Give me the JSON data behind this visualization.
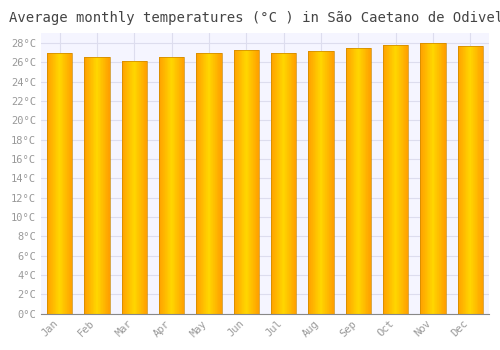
{
  "title": "Average monthly temperatures (°C ) in SãLo Caetano de Odivelas",
  "title_display": "Average monthly temperatures (°C ) in São Caetano de Odivelas",
  "months": [
    "Jan",
    "Feb",
    "Mar",
    "Apr",
    "May",
    "Jun",
    "Jul",
    "Aug",
    "Sep",
    "Oct",
    "Nov",
    "Dec"
  ],
  "values": [
    27.0,
    26.5,
    26.1,
    26.5,
    27.0,
    27.3,
    27.0,
    27.2,
    27.5,
    27.8,
    28.0,
    27.7
  ],
  "bar_color_center": "#FFD700",
  "bar_color_edge": "#FFA000",
  "bar_outline_color": "#CC8800",
  "ylim": [
    0,
    29
  ],
  "ytick_step": 2,
  "background_color": "#ffffff",
  "plot_bg_color": "#f5f5ff",
  "grid_color": "#ddddee",
  "font_color": "#999999",
  "title_color": "#444444",
  "title_fontsize": 10,
  "tick_fontsize": 7.5
}
